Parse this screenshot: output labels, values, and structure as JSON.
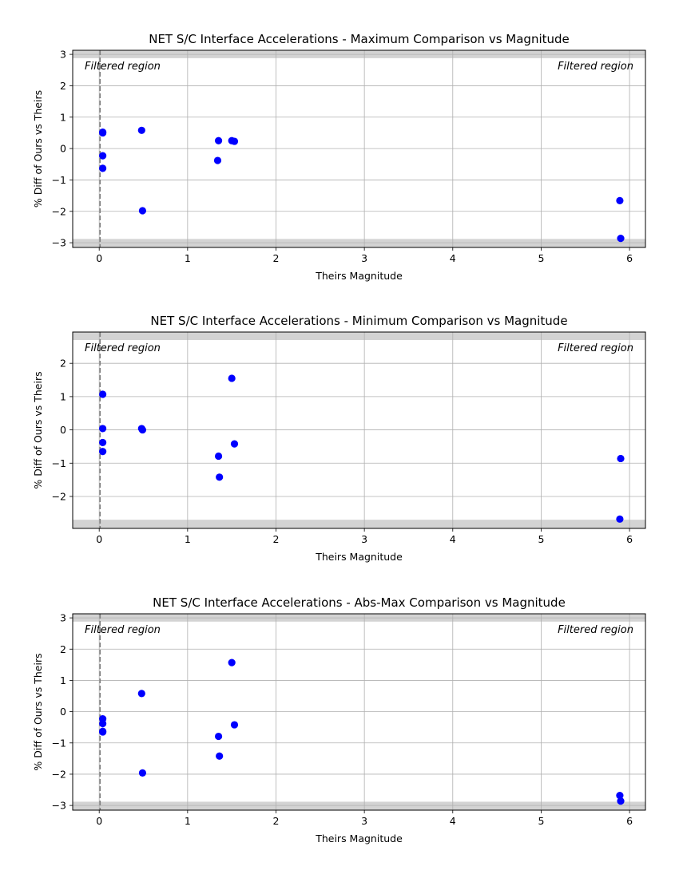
{
  "chart_data": [
    {
      "type": "scatter",
      "title": "NET S/C Interface Accelerations - Maximum Comparison vs Magnitude",
      "xlabel": "Theirs Magnitude",
      "ylabel": "% Diff of Ours vs Theirs",
      "xlim": [
        -0.3,
        6.18
      ],
      "ylim": [
        -3.15,
        3.13
      ],
      "xticks": [
        0,
        1,
        2,
        3,
        4,
        5,
        6
      ],
      "yticks": [
        -3,
        -2,
        -1,
        0,
        1,
        2,
        3
      ],
      "xtick_labels": [
        "0",
        "1",
        "2",
        "3",
        "4",
        "5",
        "6"
      ],
      "ytick_labels": [
        "−3",
        "−2",
        "−1",
        "0",
        "1",
        "2",
        "3"
      ],
      "grid": true,
      "annotations": {
        "left": "Filtered region",
        "right": "Filtered region"
      },
      "filtered_bands": [
        [
          2.88,
          3.13
        ],
        [
          -3.15,
          -2.88
        ]
      ],
      "threshold_x": 0.01,
      "point_color": "#0000ff",
      "x": [
        0.04,
        0.04,
        0.04,
        0.04,
        0.48,
        0.49,
        1.35,
        1.34,
        1.5,
        1.53,
        5.89,
        5.9
      ],
      "y": [
        0.52,
        0.5,
        -0.23,
        -0.63,
        0.58,
        -1.98,
        0.25,
        -0.38,
        0.25,
        0.23,
        -1.66,
        -2.86
      ]
    },
    {
      "type": "scatter",
      "title": "NET S/C Interface Accelerations - Minimum Comparison vs Magnitude",
      "xlabel": "Theirs Magnitude",
      "ylabel": "% Diff of Ours vs Theirs",
      "xlim": [
        -0.3,
        6.18
      ],
      "ylim": [
        -2.96,
        2.94
      ],
      "xticks": [
        0,
        1,
        2,
        3,
        4,
        5,
        6
      ],
      "yticks": [
        -2,
        -1,
        0,
        1,
        2
      ],
      "xtick_labels": [
        "0",
        "1",
        "2",
        "3",
        "4",
        "5",
        "6"
      ],
      "ytick_labels": [
        "−2",
        "−1",
        "0",
        "1",
        "2"
      ],
      "grid": true,
      "annotations": {
        "left": "Filtered region",
        "right": "Filtered region"
      },
      "filtered_bands": [
        [
          2.7,
          2.94
        ],
        [
          -2.96,
          -2.7
        ]
      ],
      "threshold_x": 0.01,
      "point_color": "#0000ff",
      "x": [
        0.04,
        0.04,
        0.04,
        0.04,
        0.48,
        0.49,
        1.35,
        1.36,
        1.5,
        1.53,
        5.89,
        5.9
      ],
      "y": [
        1.07,
        0.04,
        -0.38,
        -0.65,
        0.04,
        0.0,
        -0.79,
        -1.42,
        1.55,
        -0.42,
        -2.68,
        -0.86
      ]
    },
    {
      "type": "scatter",
      "title": "NET S/C Interface Accelerations - Abs-Max Comparison vs Magnitude",
      "xlabel": "Theirs Magnitude",
      "ylabel": "% Diff of Ours vs Theirs",
      "xlim": [
        -0.3,
        6.18
      ],
      "ylim": [
        -3.15,
        3.13
      ],
      "xticks": [
        0,
        1,
        2,
        3,
        4,
        5,
        6
      ],
      "yticks": [
        -3,
        -2,
        -1,
        0,
        1,
        2,
        3
      ],
      "xtick_labels": [
        "0",
        "1",
        "2",
        "3",
        "4",
        "5",
        "6"
      ],
      "ytick_labels": [
        "−3",
        "−2",
        "−1",
        "0",
        "1",
        "2",
        "3"
      ],
      "grid": true,
      "annotations": {
        "left": "Filtered region",
        "right": "Filtered region"
      },
      "filtered_bands": [
        [
          2.88,
          3.13
        ],
        [
          -3.15,
          -2.88
        ]
      ],
      "threshold_x": 0.01,
      "point_color": "#0000ff",
      "x": [
        0.04,
        0.04,
        0.04,
        0.04,
        0.48,
        0.49,
        1.35,
        1.36,
        1.5,
        1.53,
        5.89,
        5.9
      ],
      "y": [
        -0.23,
        -0.38,
        -0.63,
        -0.65,
        0.58,
        -1.96,
        -0.79,
        -1.42,
        1.57,
        -0.42,
        -2.68,
        -2.86
      ]
    }
  ]
}
